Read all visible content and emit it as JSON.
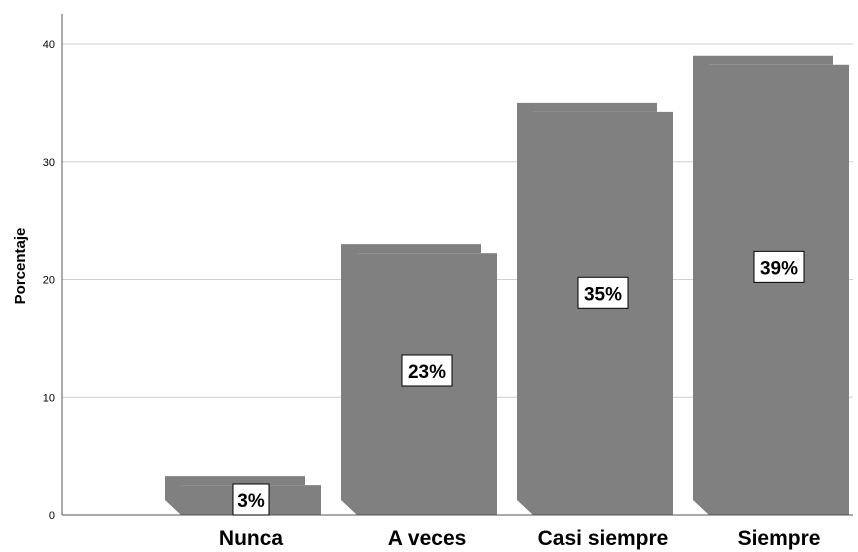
{
  "chart_data": {
    "type": "bar",
    "categories": [
      "Nunca",
      "A veces",
      "Casi siempre",
      "Siempre"
    ],
    "values": [
      3.3,
      23.0,
      35.0,
      39.0
    ],
    "data_labels": [
      "3%",
      "23%",
      "35%",
      "39%"
    ],
    "title": "",
    "xlabel": "",
    "ylabel": "Porcentaje",
    "ylim": [
      0,
      42
    ],
    "yticks": [
      0,
      10,
      20,
      30,
      40
    ],
    "grid": true,
    "bar_style": "3d",
    "colors": {
      "bar": "#808080",
      "grid": "#cfcfcf",
      "axis": "#555555",
      "label_box": "#ffffff"
    }
  }
}
